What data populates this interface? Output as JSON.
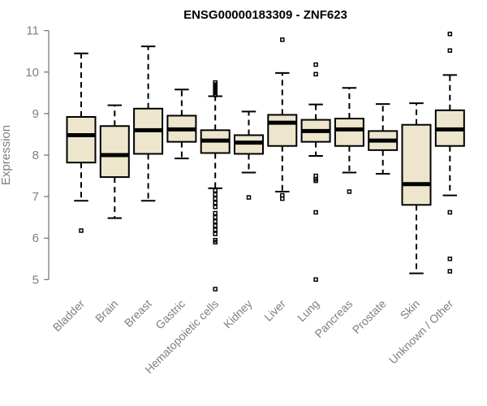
{
  "chart_data": {
    "type": "boxplot",
    "title": "ENSG00000183309 - ZNF623",
    "xlabel": "",
    "ylabel": "Expression",
    "ylim": [
      4.7,
      11.0
    ],
    "yticks": [
      5,
      6,
      7,
      8,
      9,
      10,
      11
    ],
    "box_fill": "#ede6cc",
    "categories": [
      "Bladder",
      "Brain",
      "Breast",
      "Gastric",
      "Hematopoietic cells",
      "Kidney",
      "Liver",
      "Lung",
      "Pancreas",
      "Prostate",
      "Skin",
      "Unknown / Other"
    ],
    "boxes": [
      {
        "min": 6.9,
        "q1": 7.82,
        "median": 8.48,
        "q3": 8.92,
        "max": 10.45,
        "outliers": [
          6.18
        ]
      },
      {
        "min": 6.48,
        "q1": 7.47,
        "median": 8.0,
        "q3": 8.7,
        "max": 9.2,
        "outliers": []
      },
      {
        "min": 6.9,
        "q1": 8.03,
        "median": 8.6,
        "q3": 9.12,
        "max": 10.62,
        "outliers": []
      },
      {
        "min": 7.92,
        "q1": 8.32,
        "median": 8.62,
        "q3": 8.95,
        "max": 9.58,
        "outliers": []
      },
      {
        "min": 7.2,
        "q1": 8.05,
        "median": 8.35,
        "q3": 8.6,
        "max": 9.42,
        "outliers": [
          9.75,
          9.7,
          9.65,
          9.6,
          9.55,
          9.5,
          9.45,
          7.15,
          7.05,
          6.95,
          6.85,
          6.75,
          6.6,
          6.5,
          6.4,
          6.3,
          6.2,
          6.1,
          5.95,
          5.9,
          4.77
        ]
      },
      {
        "min": 7.58,
        "q1": 8.03,
        "median": 8.3,
        "q3": 8.48,
        "max": 9.05,
        "outliers": [
          6.98
        ]
      },
      {
        "min": 7.12,
        "q1": 8.22,
        "median": 8.78,
        "q3": 8.97,
        "max": 9.98,
        "outliers": [
          10.78,
          7.03,
          6.95
        ]
      },
      {
        "min": 7.98,
        "q1": 8.32,
        "median": 8.58,
        "q3": 8.85,
        "max": 9.22,
        "outliers": [
          10.18,
          9.95,
          7.5,
          7.42,
          7.38,
          6.62,
          5.0
        ]
      },
      {
        "min": 7.58,
        "q1": 8.22,
        "median": 8.62,
        "q3": 8.88,
        "max": 9.62,
        "outliers": [
          7.12
        ]
      },
      {
        "min": 7.55,
        "q1": 8.12,
        "median": 8.35,
        "q3": 8.58,
        "max": 9.23,
        "outliers": []
      },
      {
        "min": 5.15,
        "q1": 6.8,
        "median": 7.3,
        "q3": 8.73,
        "max": 9.25,
        "outliers": []
      },
      {
        "min": 7.03,
        "q1": 8.22,
        "median": 8.62,
        "q3": 9.08,
        "max": 9.93,
        "outliers": [
          10.92,
          10.52,
          6.62,
          5.5,
          5.2
        ]
      }
    ]
  }
}
